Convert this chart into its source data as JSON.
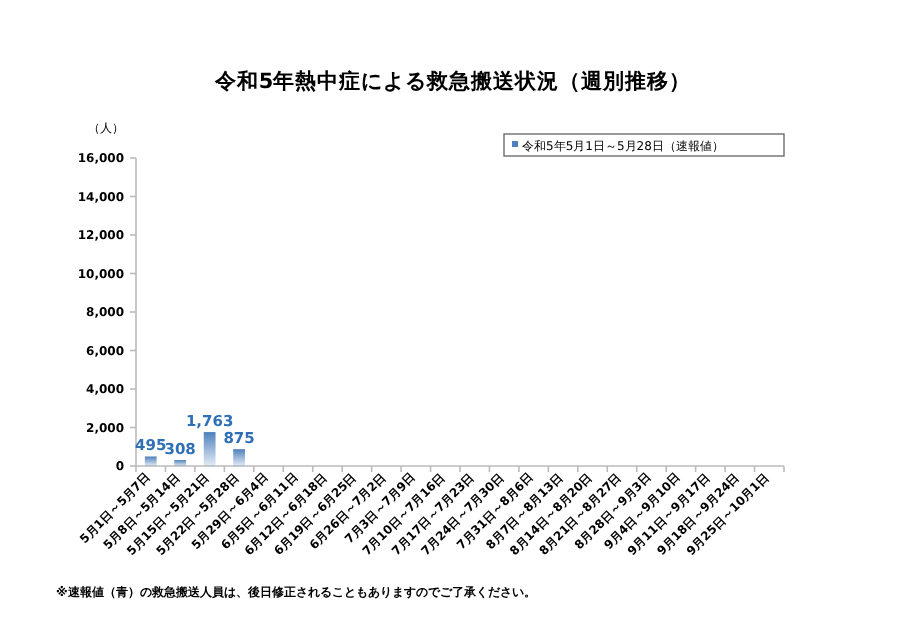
{
  "chart_data": {
    "type": "bar",
    "title": "令和5年熱中症による救急搬送状況（週別推移）",
    "ylabel": "（人）",
    "categories": [
      "5月1日～5月7日",
      "5月8日～5月14日",
      "5月15日～5月21日",
      "5月22日～5月28日",
      "5月29日～6月4日",
      "6月5日～6月11日",
      "6月12日～6月18日",
      "6月19日～6月25日",
      "6月26日～7月2日",
      "7月3日～7月9日",
      "7月10日～7月16日",
      "7月17日～7月23日",
      "7月24日～7月30日",
      "7月31日～8月6日",
      "8月7日～8月13日",
      "8月14日～8月20日",
      "8月21日～8月27日",
      "8月28日～9月3日",
      "9月4日～9月10日",
      "9月11日～9月17日",
      "9月18日～9月24日",
      "9月25日～10月1日"
    ],
    "series": [
      {
        "name": "令和5年5月1日～5月28日（速報値）",
        "color": "#4f81bd",
        "values": [
          495,
          308,
          1763,
          875,
          null,
          null,
          null,
          null,
          null,
          null,
          null,
          null,
          null,
          null,
          null,
          null,
          null,
          null,
          null,
          null,
          null,
          null
        ]
      }
    ],
    "ylim": [
      0,
      16000
    ],
    "yticks": [
      {
        "value": 0,
        "label": "0"
      },
      {
        "value": 2000,
        "label": "2,000"
      },
      {
        "value": 4000,
        "label": "4,000"
      },
      {
        "value": 6000,
        "label": "6,000"
      },
      {
        "value": 8000,
        "label": "8,000"
      },
      {
        "value": 10000,
        "label": "10,000"
      },
      {
        "value": 12000,
        "label": "12,000"
      },
      {
        "value": 14000,
        "label": "14,000"
      },
      {
        "value": 16000,
        "label": "16,000"
      }
    ],
    "value_labels": [
      "495",
      "308",
      "1,763",
      "875",
      null,
      null,
      null,
      null,
      null,
      null,
      null,
      null,
      null,
      null,
      null,
      null,
      null,
      null,
      null,
      null,
      null,
      null
    ],
    "legend": "top right",
    "annotations": [
      "※速報値（青）の救急搬送人員は、後日修正されることもありますのでご了承ください。"
    ]
  }
}
